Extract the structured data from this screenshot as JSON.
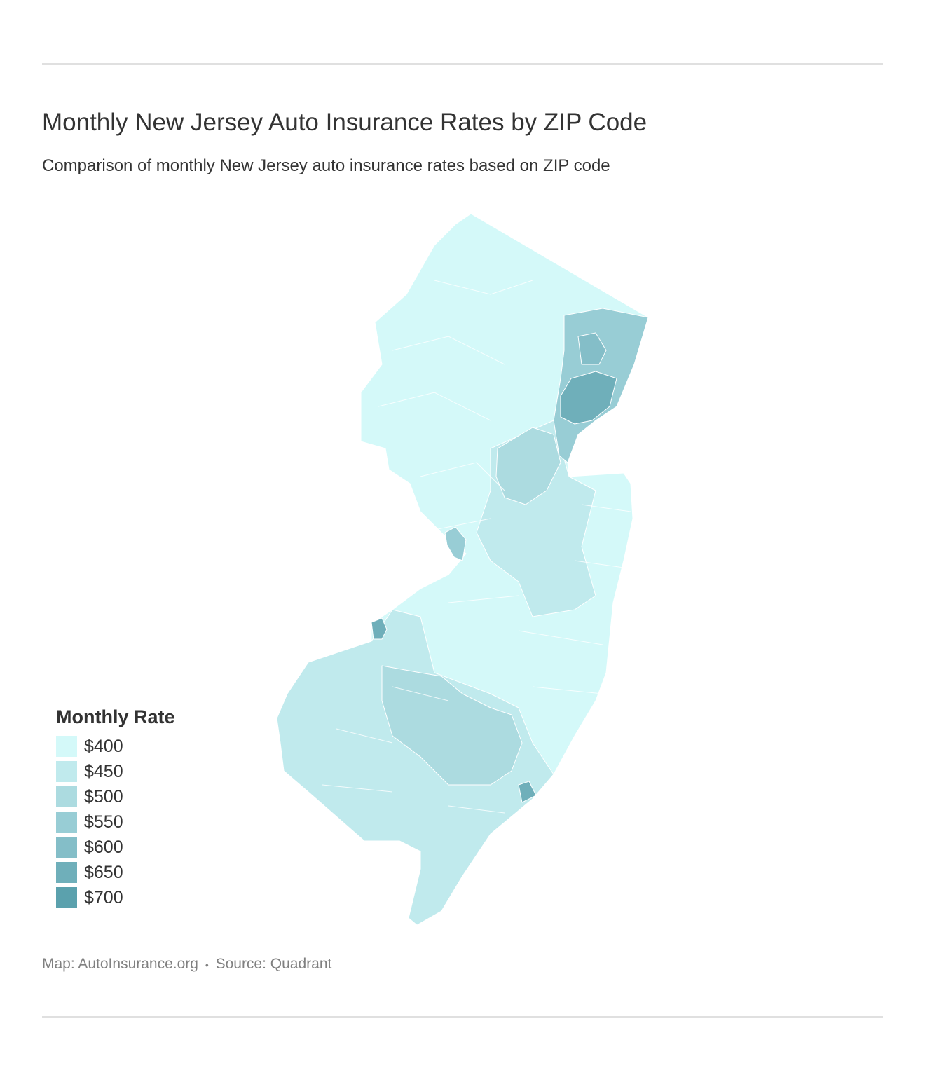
{
  "title": "Monthly New Jersey Auto Insurance Rates by ZIP Code",
  "subtitle": "Comparison of monthly New Jersey auto insurance rates based on ZIP code",
  "legend": {
    "title": "Monthly Rate",
    "items": [
      {
        "label": "$400",
        "color": "#d4f9f9"
      },
      {
        "label": "$450",
        "color": "#c0eaed"
      },
      {
        "label": "$500",
        "color": "#acdbe0"
      },
      {
        "label": "$550",
        "color": "#98cdd5"
      },
      {
        "label": "$600",
        "color": "#84bec8"
      },
      {
        "label": "$650",
        "color": "#6fafba"
      },
      {
        "label": "$700",
        "color": "#5ba1ad"
      }
    ]
  },
  "map_regions": [
    {
      "name": "state-base",
      "rate": 400
    },
    {
      "name": "central-band",
      "rate": 450
    },
    {
      "name": "south-region",
      "rate": 450
    },
    {
      "name": "south-inner",
      "rate": 500
    },
    {
      "name": "central-inner",
      "rate": 500
    },
    {
      "name": "northeast-urban",
      "rate": 550
    },
    {
      "name": "newark-jersey-city",
      "rate": 650
    },
    {
      "name": "trenton",
      "rate": 550
    },
    {
      "name": "camden",
      "rate": 650
    },
    {
      "name": "atlantic-city",
      "rate": 650
    }
  ],
  "footer": {
    "map_credit": "Map: AutoInsurance.org",
    "separator": "•",
    "source": "Source: Quadrant"
  }
}
